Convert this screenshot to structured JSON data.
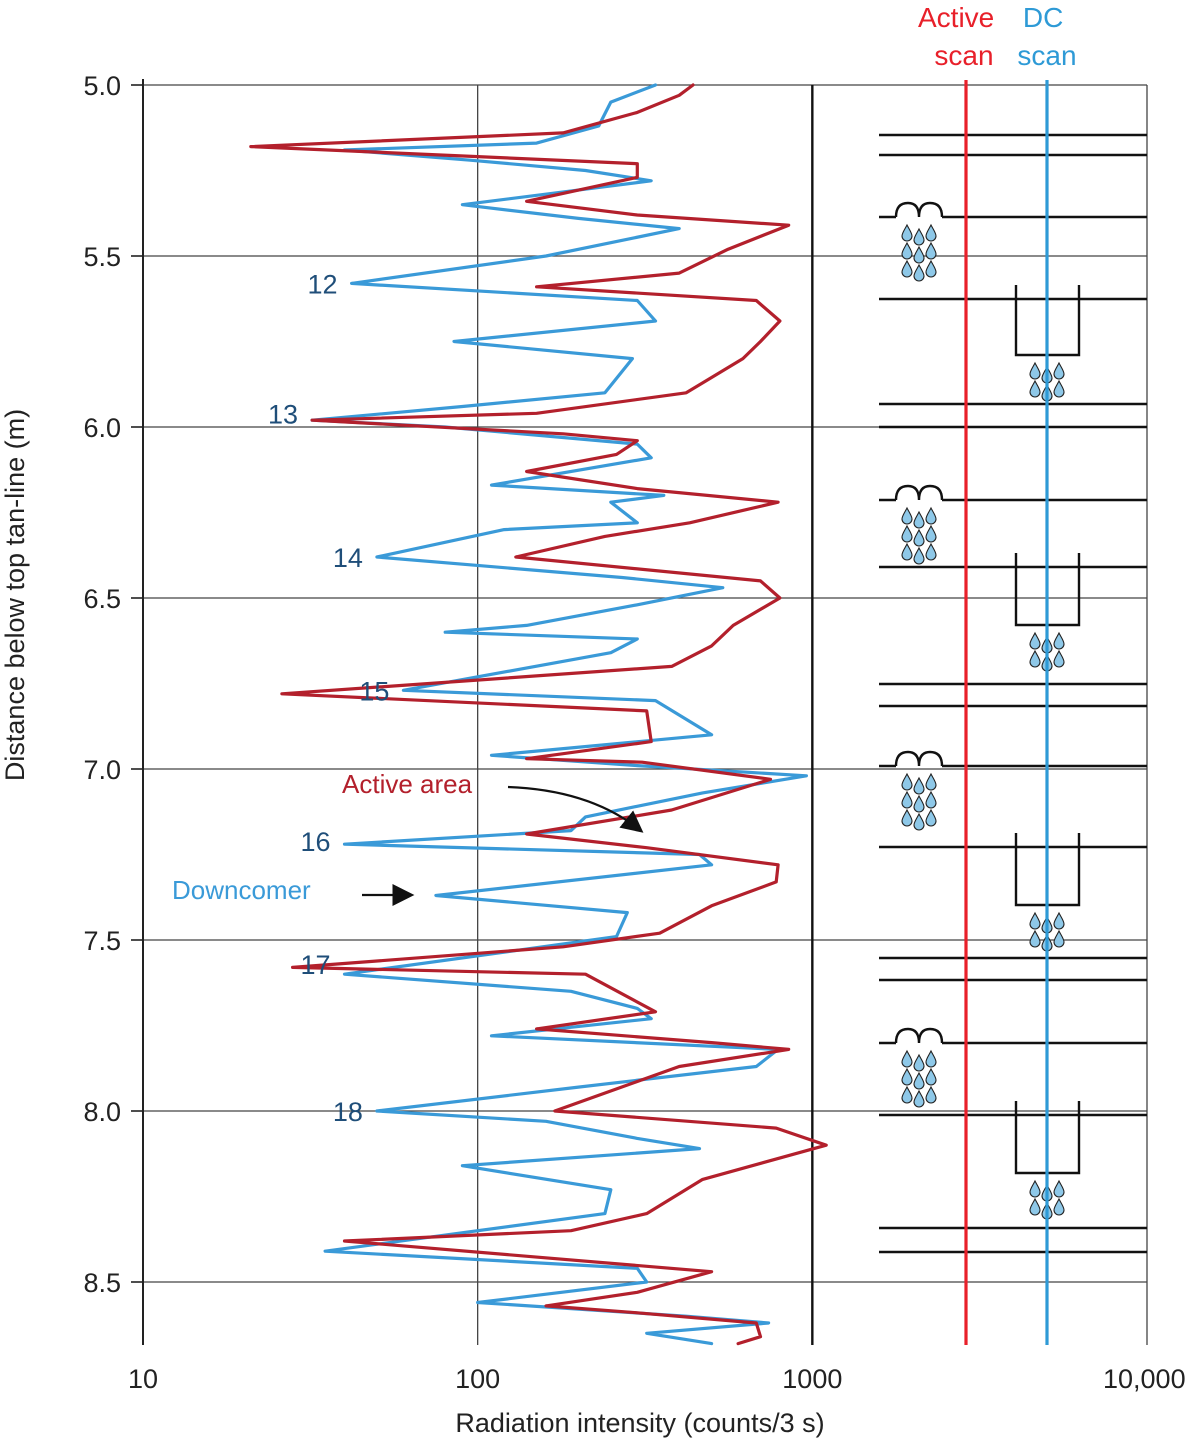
{
  "chart_data": {
    "type": "line",
    "title": "",
    "xlabel": "Radiation intensity (counts/3 s)",
    "ylabel": "Distance below top tan-line (m)",
    "xscale": "log",
    "xlim": [
      10,
      10000
    ],
    "ylim": [
      5.0,
      8.68
    ],
    "y_inverted": true,
    "x_tick_labels": [
      "10",
      "100",
      "1000",
      "10,000"
    ],
    "y_tick_labels": [
      "5.0",
      "5.5",
      "6.0",
      "6.5",
      "7.0",
      "7.5",
      "8.0",
      "8.5"
    ],
    "tray_labels": [
      {
        "text": "12",
        "y": 5.58
      },
      {
        "text": "13",
        "y": 5.96
      },
      {
        "text": "14",
        "y": 6.38
      },
      {
        "text": "15",
        "y": 6.77
      },
      {
        "text": "16",
        "y": 7.21
      },
      {
        "text": "17",
        "y": 7.57
      },
      {
        "text": "18",
        "y": 8.0
      }
    ],
    "annotations": [
      {
        "text": "Active area",
        "series": "Active scan"
      },
      {
        "text": "Downcomer",
        "series": "DC scan"
      }
    ],
    "legend": [
      {
        "text": "Active\nscan",
        "color": "#e8202a"
      },
      {
        "text": "DC\nscan",
        "color": "#2e9ad6"
      }
    ],
    "series": [
      {
        "name": "DC scan",
        "color": "#3a9ad8",
        "points": [
          [
            340,
            5.0
          ],
          [
            250,
            5.05
          ],
          [
            230,
            5.12
          ],
          [
            150,
            5.17
          ],
          [
            40,
            5.19
          ],
          [
            95,
            5.22
          ],
          [
            210,
            5.25
          ],
          [
            330,
            5.28
          ],
          [
            90,
            5.35
          ],
          [
            200,
            5.39
          ],
          [
            400,
            5.42
          ],
          [
            160,
            5.5
          ],
          [
            42,
            5.58
          ],
          [
            300,
            5.63
          ],
          [
            340,
            5.69
          ],
          [
            85,
            5.75
          ],
          [
            290,
            5.8
          ],
          [
            240,
            5.9
          ],
          [
            90,
            5.94
          ],
          [
            32,
            5.98
          ],
          [
            80,
            6.0
          ],
          [
            300,
            6.05
          ],
          [
            330,
            6.09
          ],
          [
            110,
            6.17
          ],
          [
            360,
            6.2
          ],
          [
            250,
            6.22
          ],
          [
            300,
            6.28
          ],
          [
            120,
            6.3
          ],
          [
            50,
            6.38
          ],
          [
            270,
            6.44
          ],
          [
            540,
            6.47
          ],
          [
            300,
            6.52
          ],
          [
            140,
            6.58
          ],
          [
            80,
            6.6
          ],
          [
            300,
            6.62
          ],
          [
            250,
            6.66
          ],
          [
            60,
            6.77
          ],
          [
            340,
            6.8
          ],
          [
            500,
            6.9
          ],
          [
            110,
            6.96
          ],
          [
            300,
            6.99
          ],
          [
            960,
            7.02
          ],
          [
            470,
            7.07
          ],
          [
            210,
            7.14
          ],
          [
            190,
            7.18
          ],
          [
            40,
            7.22
          ],
          [
            460,
            7.25
          ],
          [
            500,
            7.28
          ],
          [
            75,
            7.37
          ],
          [
            280,
            7.42
          ],
          [
            260,
            7.49
          ],
          [
            40,
            7.6
          ],
          [
            190,
            7.65
          ],
          [
            300,
            7.7
          ],
          [
            330,
            7.73
          ],
          [
            110,
            7.78
          ],
          [
            790,
            7.82
          ],
          [
            680,
            7.87
          ],
          [
            200,
            7.93
          ],
          [
            50,
            8.0
          ],
          [
            160,
            8.03
          ],
          [
            300,
            8.08
          ],
          [
            460,
            8.11
          ],
          [
            90,
            8.16
          ],
          [
            250,
            8.23
          ],
          [
            240,
            8.3
          ],
          [
            35,
            8.41
          ],
          [
            300,
            8.46
          ],
          [
            320,
            8.5
          ],
          [
            100,
            8.56
          ],
          [
            420,
            8.6
          ],
          [
            740,
            8.62
          ],
          [
            320,
            8.65
          ],
          [
            500,
            8.68
          ]
        ]
      },
      {
        "name": "Active scan",
        "color": "#b3202c",
        "points": [
          [
            440,
            5.0
          ],
          [
            400,
            5.03
          ],
          [
            300,
            5.08
          ],
          [
            180,
            5.14
          ],
          [
            21,
            5.18
          ],
          [
            300,
            5.23
          ],
          [
            300,
            5.27
          ],
          [
            140,
            5.34
          ],
          [
            300,
            5.38
          ],
          [
            850,
            5.41
          ],
          [
            560,
            5.48
          ],
          [
            400,
            5.55
          ],
          [
            150,
            5.59
          ],
          [
            680,
            5.63
          ],
          [
            800,
            5.69
          ],
          [
            700,
            5.75
          ],
          [
            620,
            5.8
          ],
          [
            420,
            5.9
          ],
          [
            150,
            5.96
          ],
          [
            32,
            5.98
          ],
          [
            180,
            6.02
          ],
          [
            300,
            6.04
          ],
          [
            260,
            6.08
          ],
          [
            140,
            6.13
          ],
          [
            300,
            6.18
          ],
          [
            790,
            6.22
          ],
          [
            430,
            6.28
          ],
          [
            240,
            6.32
          ],
          [
            130,
            6.38
          ],
          [
            700,
            6.45
          ],
          [
            800,
            6.5
          ],
          [
            580,
            6.58
          ],
          [
            500,
            6.64
          ],
          [
            380,
            6.7
          ],
          [
            26,
            6.78
          ],
          [
            320,
            6.83
          ],
          [
            330,
            6.92
          ],
          [
            140,
            6.97
          ],
          [
            310,
            6.98
          ],
          [
            750,
            7.03
          ],
          [
            380,
            7.12
          ],
          [
            140,
            7.19
          ],
          [
            320,
            7.23
          ],
          [
            790,
            7.28
          ],
          [
            780,
            7.33
          ],
          [
            500,
            7.4
          ],
          [
            350,
            7.48
          ],
          [
            180,
            7.52
          ],
          [
            28,
            7.58
          ],
          [
            210,
            7.6
          ],
          [
            340,
            7.71
          ],
          [
            150,
            7.76
          ],
          [
            500,
            7.8
          ],
          [
            850,
            7.82
          ],
          [
            400,
            7.87
          ],
          [
            170,
            8.0
          ],
          [
            780,
            8.05
          ],
          [
            1100,
            8.1
          ],
          [
            470,
            8.2
          ],
          [
            320,
            8.3
          ],
          [
            190,
            8.35
          ],
          [
            40,
            8.38
          ],
          [
            500,
            8.47
          ],
          [
            300,
            8.53
          ],
          [
            160,
            8.57
          ],
          [
            300,
            8.59
          ],
          [
            680,
            8.62
          ],
          [
            700,
            8.66
          ],
          [
            600,
            8.68
          ]
        ]
      }
    ]
  },
  "schematic": {
    "active_scan_label": "Active\nscan",
    "dc_scan_label": "DC\nscan",
    "active_scan_color": "#e8202a",
    "dc_scan_color": "#2e9ad6",
    "line_color": "#111111",
    "drop_fill": "#8ec8e8"
  }
}
